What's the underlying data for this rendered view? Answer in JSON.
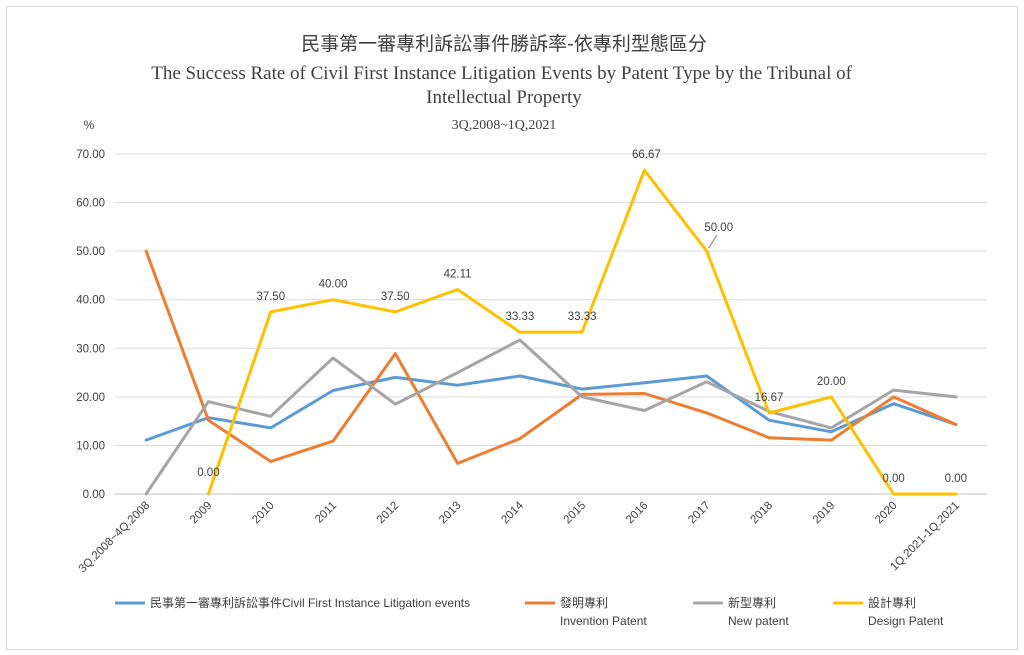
{
  "chart_data": {
    "type": "line",
    "title": "民事第一審專利訴訟事件勝訴率-依專利型態區分",
    "title_en": "The Success Rate of Civil First Instance Litigation Events by Patent Type  by the Tribunal of Intellectual Property",
    "subtitle": "3Q,2008~1Q,2021",
    "ylabel": "%",
    "ylim": [
      0,
      70
    ],
    "yticks": [
      "0.00",
      "10.00",
      "20.00",
      "30.00",
      "40.00",
      "50.00",
      "60.00",
      "70.00"
    ],
    "grid": true,
    "legend_position": "bottom",
    "categories": [
      "3Q.2008~4Q.2008",
      "2009",
      "2010",
      "2011",
      "2012",
      "2013",
      "2014",
      "2015",
      "2016",
      "2017",
      "2018",
      "2019",
      "2020",
      "1Q.2021-1Q.2021"
    ],
    "series": [
      {
        "name": "民事第一審專利訴訟事件Civil First Instance Litigation events",
        "color": "#5b9bd5",
        "values": [
          11.1,
          15.7,
          13.6,
          21.3,
          24.0,
          22.4,
          24.3,
          21.6,
          22.9,
          24.3,
          15.2,
          12.8,
          18.6,
          14.3
        ]
      },
      {
        "name": "發明專利",
        "name_en": "Invention Patent",
        "color": "#ed7d31",
        "values": [
          50.0,
          15.2,
          6.7,
          10.9,
          28.9,
          6.3,
          11.4,
          20.5,
          20.7,
          16.7,
          11.6,
          11.1,
          20.0,
          14.3
        ]
      },
      {
        "name": "新型專利",
        "name_en": "New patent",
        "color": "#a5a5a5",
        "values": [
          0.0,
          19.0,
          16.0,
          28.0,
          18.5,
          25.0,
          31.7,
          20.0,
          17.2,
          23.1,
          17.0,
          13.6,
          21.4,
          20.0
        ]
      },
      {
        "name": "設計專利",
        "name_en": "Design Patent",
        "color": "#ffc000",
        "values": [
          null,
          0.0,
          37.5,
          40.0,
          37.5,
          42.11,
          33.33,
          33.33,
          66.67,
          50.0,
          16.67,
          20.0,
          0.0,
          0.0
        ],
        "data_labels": [
          "",
          "0.00",
          "37.50",
          "40.00",
          "37.50",
          "42.11",
          "33.33",
          "33.33",
          "66.67",
          "50.00",
          "16.67",
          "20.00",
          "0.00",
          "0.00"
        ]
      }
    ]
  }
}
